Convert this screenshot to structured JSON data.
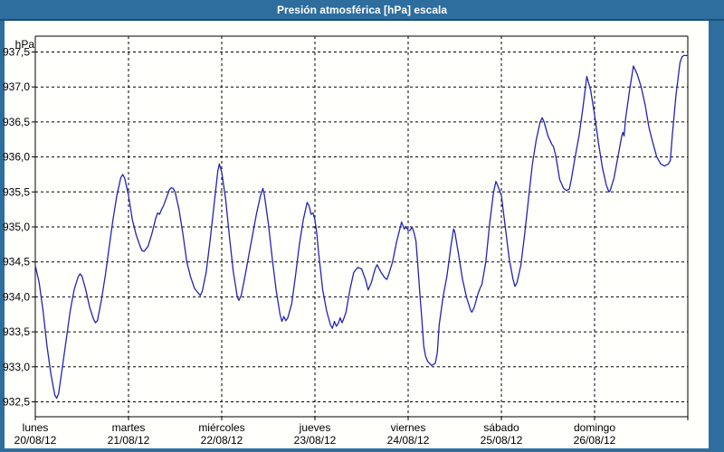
{
  "window": {
    "title": "Presión atmosférica [hPa] escala"
  },
  "colors": {
    "titlebar_bg": "#2d6e9e",
    "titlebar_border": "#1c4f75",
    "plot_bg": "#fffffc",
    "grid": "#000000",
    "line": "#2424b4",
    "text": "#000000"
  },
  "chart_data": {
    "type": "line",
    "title": "Presión atmosférica [hPa] escala",
    "unit_label": "hPa",
    "ylabel": "hPa",
    "ylim": [
      932.5,
      937.5
    ],
    "ytick_step": 0.5,
    "ytick_labels": [
      "937,5",
      "937,0",
      "936,5",
      "936,0",
      "935,5",
      "935,0",
      "934,5",
      "934,0",
      "933,5",
      "933,0",
      "932,5"
    ],
    "grid": "dashed",
    "legend": "none",
    "xlim_hours": [
      0,
      168
    ],
    "x_days": [
      {
        "name": "lunes",
        "date": "20/08/12"
      },
      {
        "name": "martes",
        "date": "21/08/12"
      },
      {
        "name": "miércoles",
        "date": "22/08/12"
      },
      {
        "name": "jueves",
        "date": "23/08/12"
      },
      {
        "name": "viernes",
        "date": "24/08/12"
      },
      {
        "name": "sábado",
        "date": "25/08/12"
      },
      {
        "name": "domingo",
        "date": "26/08/12"
      }
    ],
    "series": [
      {
        "name": "Presión atmosférica [hPa]",
        "points": [
          [
            0,
            934.45
          ],
          [
            1,
            934.2
          ],
          [
            2,
            933.8
          ],
          [
            3,
            933.3
          ],
          [
            4,
            932.9
          ],
          [
            5,
            932.6
          ],
          [
            5.5,
            932.55
          ],
          [
            6,
            932.62
          ],
          [
            7,
            933.0
          ],
          [
            8,
            933.4
          ],
          [
            9,
            933.8
          ],
          [
            10,
            934.1
          ],
          [
            11,
            934.28
          ],
          [
            11.5,
            934.33
          ],
          [
            12,
            934.3
          ],
          [
            13,
            934.1
          ],
          [
            14,
            933.85
          ],
          [
            15,
            933.68
          ],
          [
            15.5,
            933.63
          ],
          [
            16,
            933.66
          ],
          [
            17,
            933.95
          ],
          [
            18,
            934.3
          ],
          [
            19,
            934.7
          ],
          [
            20,
            935.1
          ],
          [
            21,
            935.45
          ],
          [
            22,
            935.7
          ],
          [
            22.5,
            935.75
          ],
          [
            23,
            935.7
          ],
          [
            24,
            935.45
          ],
          [
            25,
            935.1
          ],
          [
            26,
            934.88
          ],
          [
            27,
            934.72
          ],
          [
            27.5,
            934.66
          ],
          [
            28,
            934.65
          ],
          [
            29,
            934.72
          ],
          [
            30,
            934.9
          ],
          [
            31,
            935.12
          ],
          [
            31.5,
            935.2
          ],
          [
            32,
            935.18
          ],
          [
            32.5,
            935.25
          ],
          [
            33,
            935.3
          ],
          [
            34,
            935.45
          ],
          [
            34.5,
            935.53
          ],
          [
            35,
            935.56
          ],
          [
            35.5,
            935.55
          ],
          [
            36,
            935.5
          ],
          [
            37,
            935.25
          ],
          [
            38,
            934.9
          ],
          [
            39,
            934.5
          ],
          [
            40,
            934.28
          ],
          [
            41,
            934.12
          ],
          [
            42,
            934.05
          ],
          [
            42.5,
            934.02
          ],
          [
            43,
            934.08
          ],
          [
            44,
            934.35
          ],
          [
            45,
            934.8
          ],
          [
            46,
            935.3
          ],
          [
            47,
            935.8
          ],
          [
            47.4,
            935.9
          ],
          [
            48,
            935.78
          ],
          [
            49,
            935.4
          ],
          [
            50,
            934.85
          ],
          [
            51,
            934.35
          ],
          [
            52,
            934.0
          ],
          [
            52.4,
            933.95
          ],
          [
            53,
            934.02
          ],
          [
            54,
            934.3
          ],
          [
            55,
            934.6
          ],
          [
            56,
            934.9
          ],
          [
            57,
            935.2
          ],
          [
            58,
            935.45
          ],
          [
            58.6,
            935.55
          ],
          [
            59,
            935.45
          ],
          [
            60,
            935.05
          ],
          [
            61,
            934.55
          ],
          [
            62,
            934.1
          ],
          [
            63,
            933.75
          ],
          [
            63.5,
            933.65
          ],
          [
            64,
            933.72
          ],
          [
            64.5,
            933.66
          ],
          [
            65,
            933.7
          ],
          [
            66,
            933.9
          ],
          [
            67,
            934.3
          ],
          [
            68,
            934.75
          ],
          [
            69,
            935.1
          ],
          [
            70,
            935.35
          ],
          [
            70.5,
            935.3
          ],
          [
            71,
            935.18
          ],
          [
            71.5,
            935.2
          ],
          [
            72,
            935.1
          ],
          [
            72.5,
            934.9
          ],
          [
            73,
            934.6
          ],
          [
            74,
            934.1
          ],
          [
            75,
            933.8
          ],
          [
            76,
            933.6
          ],
          [
            76.5,
            933.55
          ],
          [
            77,
            933.65
          ],
          [
            77.5,
            933.58
          ],
          [
            78,
            933.62
          ],
          [
            78.5,
            933.7
          ],
          [
            79,
            933.63
          ],
          [
            79.5,
            933.7
          ],
          [
            80,
            933.78
          ],
          [
            81,
            934.1
          ],
          [
            82,
            934.35
          ],
          [
            83,
            934.42
          ],
          [
            84,
            934.4
          ],
          [
            85,
            934.25
          ],
          [
            85.7,
            934.1
          ],
          [
            86.5,
            934.2
          ],
          [
            87.5,
            934.4
          ],
          [
            88,
            934.46
          ],
          [
            89,
            934.35
          ],
          [
            90,
            934.27
          ],
          [
            90.5,
            934.25
          ],
          [
            91,
            934.32
          ],
          [
            92,
            934.5
          ],
          [
            93,
            934.78
          ],
          [
            94,
            935.0
          ],
          [
            94.3,
            935.07
          ],
          [
            95,
            934.97
          ],
          [
            95.5,
            935.0
          ],
          [
            96,
            934.95
          ],
          [
            96.5,
            934.95
          ],
          [
            97,
            935.0
          ],
          [
            97.5,
            934.92
          ],
          [
            98,
            934.8
          ],
          [
            98.5,
            934.45
          ],
          [
            99,
            934.05
          ],
          [
            99.5,
            933.7
          ],
          [
            100,
            933.3
          ],
          [
            100.5,
            933.15
          ],
          [
            101,
            933.08
          ],
          [
            102,
            933.02
          ],
          [
            103,
            933.05
          ],
          [
            103.5,
            933.2
          ],
          [
            104,
            933.6
          ],
          [
            105,
            934.0
          ],
          [
            106,
            934.3
          ],
          [
            107,
            934.72
          ],
          [
            107.7,
            934.97
          ],
          [
            108,
            934.93
          ],
          [
            109,
            934.6
          ],
          [
            110,
            934.25
          ],
          [
            111,
            934.0
          ],
          [
            112,
            933.82
          ],
          [
            112.4,
            933.78
          ],
          [
            113,
            933.85
          ],
          [
            114,
            934.05
          ],
          [
            114.5,
            934.12
          ],
          [
            115,
            934.18
          ],
          [
            116,
            934.5
          ],
          [
            117,
            935.05
          ],
          [
            118,
            935.5
          ],
          [
            118.6,
            935.65
          ],
          [
            119,
            935.6
          ],
          [
            120,
            935.45
          ],
          [
            121,
            935.0
          ],
          [
            122,
            934.55
          ],
          [
            123,
            934.25
          ],
          [
            123.5,
            934.15
          ],
          [
            124,
            934.2
          ],
          [
            125,
            934.45
          ],
          [
            126,
            934.9
          ],
          [
            127,
            935.4
          ],
          [
            128,
            935.9
          ],
          [
            129,
            936.25
          ],
          [
            130,
            936.5
          ],
          [
            130.5,
            936.56
          ],
          [
            131,
            936.5
          ],
          [
            132,
            936.3
          ],
          [
            133,
            936.18
          ],
          [
            133.4,
            936.15
          ],
          [
            134,
            936.02
          ],
          [
            135,
            935.68
          ],
          [
            136,
            935.55
          ],
          [
            136.8,
            935.52
          ],
          [
            137.5,
            935.54
          ],
          [
            138,
            935.68
          ],
          [
            139,
            936.0
          ],
          [
            140,
            936.3
          ],
          [
            141,
            936.7
          ],
          [
            142,
            937.15
          ],
          [
            143,
            936.95
          ],
          [
            144,
            936.6
          ],
          [
            145,
            936.2
          ],
          [
            146,
            935.85
          ],
          [
            147,
            935.6
          ],
          [
            147.7,
            935.5
          ],
          [
            148,
            935.52
          ],
          [
            149,
            935.7
          ],
          [
            150,
            936.0
          ],
          [
            151,
            936.3
          ],
          [
            151.3,
            936.35
          ],
          [
            151.6,
            936.3
          ],
          [
            152,
            936.55
          ],
          [
            153,
            936.95
          ],
          [
            154,
            937.3
          ],
          [
            155,
            937.18
          ],
          [
            156,
            937.0
          ],
          [
            157,
            936.75
          ],
          [
            158,
            936.42
          ],
          [
            159,
            936.2
          ],
          [
            160,
            936.0
          ],
          [
            161,
            935.9
          ],
          [
            162,
            935.87
          ],
          [
            163,
            935.9
          ],
          [
            163.5,
            935.95
          ],
          [
            164,
            936.3
          ],
          [
            165,
            936.9
          ],
          [
            166,
            937.35
          ],
          [
            166.5,
            937.43
          ],
          [
            167,
            937.45
          ],
          [
            168,
            937.45
          ]
        ]
      }
    ]
  }
}
